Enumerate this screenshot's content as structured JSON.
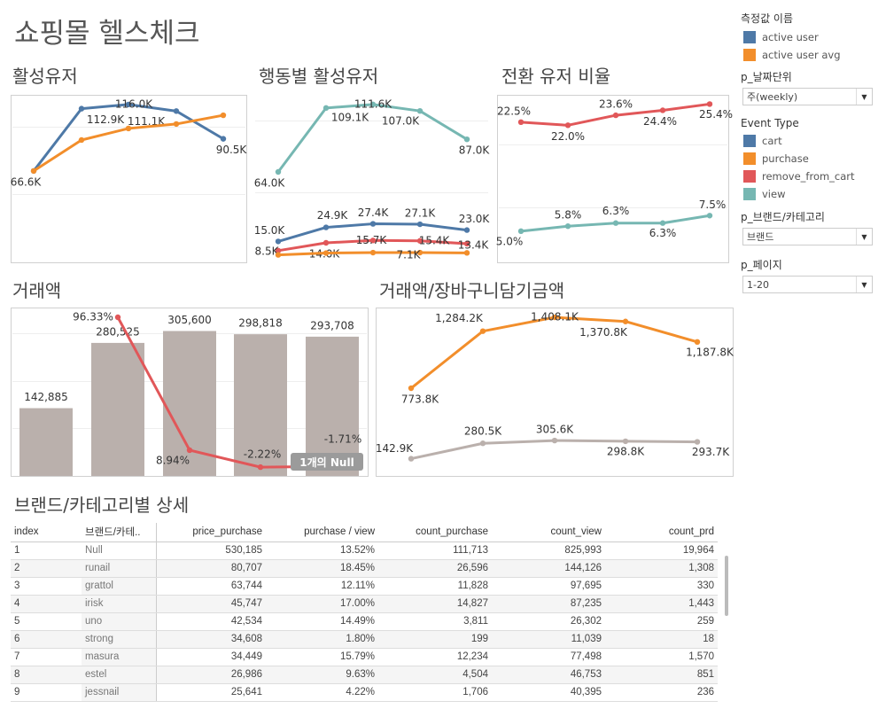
{
  "dashboard_title": "쇼핑몰 헬스체크",
  "colors": {
    "blue": "#4e79a7",
    "orange": "#f28e2b",
    "red": "#e15759",
    "teal": "#76b7b2",
    "bar": "#bab0ac",
    "gray_line": "#bab0ac"
  },
  "panels": {
    "active_users": {
      "title": "활성유저",
      "series": [
        {
          "name": "active user",
          "color": "#4e79a7",
          "values": [
            66.6,
            112.9,
            116.0,
            111.1,
            90.5
          ],
          "labels": [
            "66.6K",
            "112.9K",
            "116.0K",
            "111.1K",
            "90.5K"
          ]
        },
        {
          "name": "active user avg",
          "color": "#f28e2b",
          "values": [
            66.6,
            89.6,
            98.2,
            101.5,
            108.0
          ],
          "labels": [
            "",
            "",
            "",
            "",
            ""
          ]
        }
      ]
    },
    "event_users": {
      "title": "행동별 활성유저",
      "series": [
        {
          "name": "view",
          "color": "#76b7b2",
          "values": [
            64.0,
            109.1,
            111.6,
            107.0,
            87.0
          ],
          "labels": [
            "64.0K",
            "109.1K",
            "111.6K",
            "107.0K",
            "87.0K"
          ]
        },
        {
          "name": "cart",
          "color": "#4e79a7",
          "values": [
            15.0,
            24.9,
            27.4,
            27.1,
            23.0
          ],
          "labels": [
            "15.0K",
            "24.9K",
            "27.4K",
            "27.1K",
            "23.0K"
          ]
        },
        {
          "name": "remove_from_cart",
          "color": "#e15759",
          "values": [
            8.5,
            14.0,
            15.7,
            15.4,
            13.4
          ],
          "labels": [
            "8.5K",
            "14.0K",
            "15.7K",
            "15.4K",
            "13.4K"
          ]
        },
        {
          "name": "purchase",
          "color": "#f28e2b",
          "values": [
            5.5,
            6.8,
            7.1,
            7.1,
            6.9
          ],
          "labels": [
            "",
            "",
            "",
            "7.1K",
            ""
          ]
        }
      ]
    },
    "conversion": {
      "title": "전환 유저 비율",
      "series": [
        {
          "color": "#e15759",
          "values": [
            22.5,
            22.0,
            23.6,
            24.4,
            25.4
          ],
          "labels": [
            "22.5%",
            "22.0%",
            "23.6%",
            "24.4%",
            "25.4%"
          ]
        },
        {
          "color": "#76b7b2",
          "values": [
            5.0,
            5.8,
            6.3,
            6.3,
            7.5
          ],
          "labels": [
            "5.0%",
            "5.8%",
            "6.3%",
            "6.3%",
            "7.5%"
          ]
        }
      ]
    },
    "revenue": {
      "title": "거래액",
      "bars": {
        "values": [
          142885,
          280525,
          305600,
          298818,
          293708
        ],
        "labels": [
          "142,885",
          "280,525",
          "305,600",
          "298,818",
          "293,708"
        ]
      },
      "growth": {
        "color": "#e15759",
        "values": [
          null,
          96.33,
          8.94,
          -2.22,
          -1.71
        ],
        "labels": [
          "",
          "96.33%",
          "8.94%",
          "-2.22%",
          "-1.71%"
        ]
      },
      "null_badge": "1개의 Null"
    },
    "revenue_vs_cart": {
      "title": "거래액/장바구니담기금액",
      "series": [
        {
          "color": "#f28e2b",
          "values": [
            773.8,
            1284.2,
            1408.1,
            1370.8,
            1187.8
          ],
          "labels": [
            "773.8K",
            "1,284.2K",
            "1,408.1K",
            "1,370.8K",
            "1,187.8K"
          ]
        },
        {
          "color": "#bab0ac",
          "values": [
            142.9,
            280.5,
            305.6,
            298.8,
            293.7
          ],
          "labels": [
            "142.9K",
            "280.5K",
            "305.6K",
            "298.8K",
            "293.7K"
          ]
        }
      ]
    }
  },
  "legend": {
    "measure_title": "측정값 이름",
    "measure_items": [
      {
        "label": "active user",
        "color": "#4e79a7"
      },
      {
        "label": "active user avg",
        "color": "#f28e2b"
      }
    ],
    "date_param_title": "p_날짜단위",
    "date_param_value": "주(weekly)",
    "event_title": "Event Type",
    "event_items": [
      {
        "label": "cart",
        "color": "#4e79a7"
      },
      {
        "label": "purchase",
        "color": "#f28e2b"
      },
      {
        "label": "remove_from_cart",
        "color": "#e15759"
      },
      {
        "label": "view",
        "color": "#76b7b2"
      }
    ],
    "brand_param_title": "p_브랜드/카테고리",
    "brand_param_value": "브랜드",
    "page_param_title": "p_페이지",
    "page_param_value": "1-20"
  },
  "detail": {
    "title": "브랜드/카테고리별 상세",
    "columns": [
      "index",
      "브랜드/카테..",
      "price_purchase",
      "purchase / view",
      "count_purchase",
      "count_view",
      "count_prd"
    ],
    "rows": [
      [
        "1",
        "Null",
        "530,185",
        "13.52%",
        "111,713",
        "825,993",
        "19,964"
      ],
      [
        "2",
        "runail",
        "80,707",
        "18.45%",
        "26,596",
        "144,126",
        "1,308"
      ],
      [
        "3",
        "grattol",
        "63,744",
        "12.11%",
        "11,828",
        "97,695",
        "330"
      ],
      [
        "4",
        "irisk",
        "45,747",
        "17.00%",
        "14,827",
        "87,235",
        "1,443"
      ],
      [
        "5",
        "uno",
        "42,534",
        "14.49%",
        "3,811",
        "26,302",
        "259"
      ],
      [
        "6",
        "strong",
        "34,608",
        "1.80%",
        "199",
        "11,039",
        "18"
      ],
      [
        "7",
        "masura",
        "34,449",
        "15.79%",
        "12,234",
        "77,498",
        "1,570"
      ],
      [
        "8",
        "estel",
        "26,986",
        "9.63%",
        "4,504",
        "46,753",
        "851"
      ],
      [
        "9",
        "jessnail",
        "25,641",
        "4.22%",
        "1,706",
        "40,395",
        "236"
      ]
    ]
  }
}
